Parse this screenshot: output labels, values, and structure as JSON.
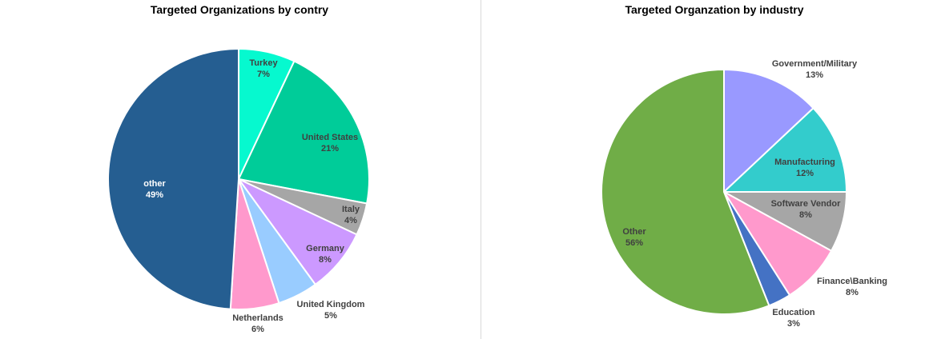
{
  "chart_data": [
    {
      "type": "pie",
      "title": "Targeted Organizations by contry",
      "slices": [
        {
          "label": "Turkey",
          "value": 7,
          "value_label": "7%",
          "color": "#06F9CF",
          "text_color": "#404040"
        },
        {
          "label": "United States",
          "value": 21,
          "value_label": "21%",
          "color": "#00CC99",
          "text_color": "#404040"
        },
        {
          "label": "Italy",
          "value": 4,
          "value_label": "4%",
          "color": "#A6A6A6",
          "text_color": "#404040"
        },
        {
          "label": "Germany",
          "value": 8,
          "value_label": "8%",
          "color": "#CC99FF",
          "text_color": "#404040"
        },
        {
          "label": "United Kingdom",
          "value": 5,
          "value_label": "5%",
          "color": "#99CCFF",
          "text_color": "#404040"
        },
        {
          "label": "Netherlands",
          "value": 6,
          "value_label": "6%",
          "color": "#FF99CC",
          "text_color": "#404040"
        },
        {
          "label": "other",
          "value": 49,
          "value_label": "49%",
          "color": "#255E91",
          "text_color": "#FFFFFF"
        }
      ]
    },
    {
      "type": "pie",
      "title": "Targeted Organzation by industry",
      "slices": [
        {
          "label": "Government/Military",
          "value": 13,
          "value_label": "13%",
          "color": "#9999FF",
          "text_color": "#404040"
        },
        {
          "label": "Manufacturing",
          "value": 12,
          "value_label": "12%",
          "color": "#33CCCC",
          "text_color": "#404040"
        },
        {
          "label": "Software Vendor",
          "value": 8,
          "value_label": "8%",
          "color": "#A6A6A6",
          "text_color": "#404040"
        },
        {
          "label": "Finance\\Banking",
          "value": 8,
          "value_label": "8%",
          "color": "#FF99CC",
          "text_color": "#404040"
        },
        {
          "label": "Education",
          "value": 3,
          "value_label": "3%",
          "color": "#4472C4",
          "text_color": "#404040"
        },
        {
          "label": "Other",
          "value": 56,
          "value_label": "56%",
          "color": "#70AD47",
          "text_color": "#404040"
        }
      ]
    }
  ]
}
